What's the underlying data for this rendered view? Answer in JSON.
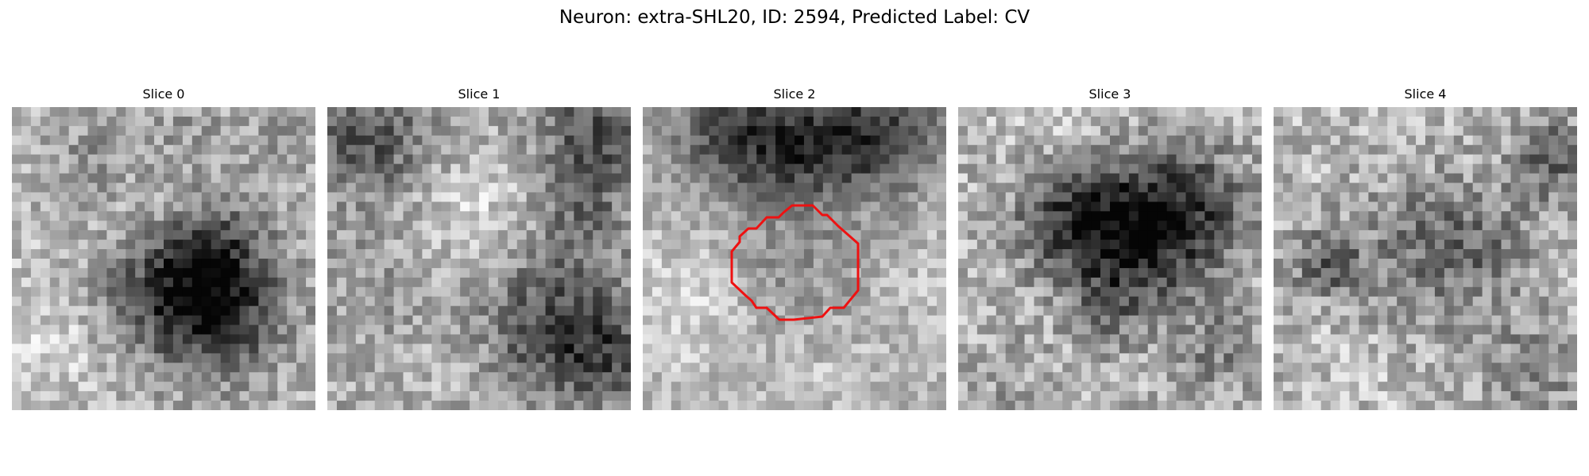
{
  "figure": {
    "title": "Neuron: extra-SHL20, ID: 2594, Predicted Label: CV"
  },
  "slices": [
    {
      "title": "Slice 0"
    },
    {
      "title": "Slice 1"
    },
    {
      "title": "Slice 2",
      "contour_color": "#ee1111"
    },
    {
      "title": "Slice 3"
    },
    {
      "title": "Slice 4"
    }
  ]
}
